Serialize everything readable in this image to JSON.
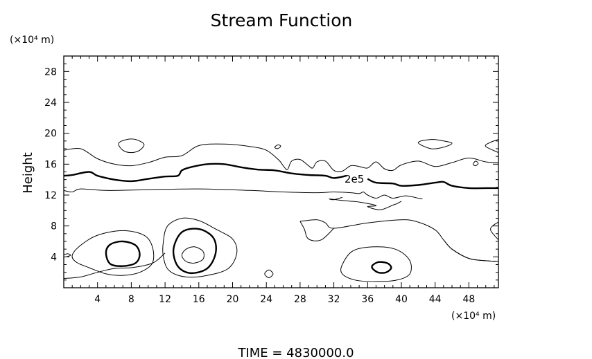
{
  "chart_data": {
    "type": "contour",
    "title": "Stream Function",
    "xlabel": "",
    "ylabel": "Height",
    "x_unit": "(×10⁴ m)",
    "y_unit": "(×10⁴ m)",
    "xlim": [
      0,
      51.5
    ],
    "ylim": [
      0,
      30
    ],
    "x_ticks": [
      4,
      8,
      12,
      16,
      20,
      24,
      28,
      32,
      36,
      40,
      44,
      48
    ],
    "y_ticks": [
      4,
      8,
      12,
      16,
      20,
      24,
      28
    ],
    "grid": false,
    "contour_label": "2e5",
    "footer": "TIME  =  4830000.0",
    "contours": [
      {
        "name": "upper-band-thin",
        "weight": "thin",
        "points": [
          [
            0,
            17.8
          ],
          [
            2,
            18
          ],
          [
            4,
            16.7
          ],
          [
            6,
            16
          ],
          [
            8,
            15.8
          ],
          [
            10,
            16.2
          ],
          [
            12,
            16.9
          ],
          [
            14,
            17.1
          ],
          [
            16,
            18.4
          ],
          [
            19,
            18.6
          ],
          [
            22,
            18.3
          ],
          [
            24,
            17.8
          ],
          [
            25.5,
            16.5
          ],
          [
            26,
            15.8
          ],
          [
            26.5,
            15.3
          ],
          [
            27,
            16.4
          ],
          [
            28,
            16.6
          ],
          [
            29,
            15.8
          ],
          [
            29.5,
            15.5
          ],
          [
            30,
            16.3
          ],
          [
            31,
            16.4
          ],
          [
            32,
            15.2
          ],
          [
            33,
            15.1
          ],
          [
            34,
            15.8
          ],
          [
            35,
            15.7
          ],
          [
            36,
            15.5
          ],
          [
            37,
            16.3
          ],
          [
            38,
            15.4
          ],
          [
            39,
            15.2
          ],
          [
            40,
            15.9
          ],
          [
            42,
            16.4
          ],
          [
            44,
            15.7
          ],
          [
            46,
            16.2
          ],
          [
            48,
            16.8
          ],
          [
            50,
            16.3
          ],
          [
            51.5,
            16.2
          ]
        ]
      },
      {
        "name": "thick-2e5",
        "weight": "thick",
        "points": [
          [
            0,
            14.5
          ],
          [
            1,
            14.6
          ],
          [
            3,
            15
          ],
          [
            4,
            14.5
          ],
          [
            6,
            14
          ],
          [
            8,
            13.8
          ],
          [
            10,
            14.1
          ],
          [
            12,
            14.4
          ],
          [
            13.5,
            14.5
          ],
          [
            14,
            15.2
          ],
          [
            15,
            15.6
          ],
          [
            17,
            16
          ],
          [
            19,
            16
          ],
          [
            21,
            15.6
          ],
          [
            23,
            15.3
          ],
          [
            25,
            15.2
          ],
          [
            27,
            14.8
          ],
          [
            29,
            14.6
          ],
          [
            31,
            14.5
          ],
          [
            32,
            14.2
          ],
          [
            33.5,
            14.5
          ]
        ]
      },
      {
        "name": "thick-2e5-right",
        "weight": "thick",
        "points": [
          [
            36,
            14.1
          ],
          [
            37,
            13.6
          ],
          [
            39,
            13.5
          ],
          [
            40,
            13.2
          ],
          [
            42,
            13.3
          ],
          [
            44,
            13.6
          ],
          [
            45,
            13.7
          ],
          [
            46,
            13.2
          ],
          [
            48,
            12.9
          ],
          [
            50,
            12.9
          ],
          [
            51.5,
            12.9
          ]
        ]
      },
      {
        "name": "lower-band-thin",
        "weight": "thin",
        "points": [
          [
            0,
            12.6
          ],
          [
            1,
            12.4
          ],
          [
            2,
            12.8
          ],
          [
            5,
            12.6
          ],
          [
            10,
            12.7
          ],
          [
            16,
            12.8
          ],
          [
            22,
            12.6
          ],
          [
            26,
            12.4
          ],
          [
            30,
            12.3
          ],
          [
            32,
            12.4
          ],
          [
            34,
            12.3
          ],
          [
            35,
            12.2
          ],
          [
            35.5,
            12.4
          ],
          [
            36,
            12
          ],
          [
            37,
            11.6
          ],
          [
            38,
            12
          ],
          [
            39,
            11.6
          ],
          [
            40.5,
            11.9
          ],
          [
            42,
            11.6
          ],
          [
            42.5,
            11.5
          ]
        ]
      },
      {
        "name": "low-lobe-thin",
        "weight": "thin",
        "points": [
          [
            33,
            11.7
          ],
          [
            32,
            11.4
          ],
          [
            31.5,
            11.5
          ],
          [
            33,
            11.3
          ],
          [
            35,
            11.1
          ],
          [
            36.5,
            10.8
          ],
          [
            37,
            10.6
          ],
          [
            36,
            10.5
          ],
          [
            37.5,
            10.1
          ],
          [
            39,
            10.7
          ],
          [
            39.5,
            10.9
          ],
          [
            40,
            11.2
          ]
        ]
      },
      {
        "name": "dome-thin",
        "weight": "thin",
        "points": [
          [
            28,
            8.6
          ],
          [
            30,
            8.8
          ],
          [
            31,
            8.4
          ],
          [
            32,
            7.7
          ],
          [
            36,
            8.4
          ],
          [
            40,
            8.8
          ],
          [
            42,
            8.5
          ],
          [
            44,
            7.5
          ],
          [
            45,
            6.2
          ],
          [
            46,
            5
          ],
          [
            48,
            3.8
          ],
          [
            50,
            3.5
          ],
          [
            51.5,
            3.4
          ]
        ]
      },
      {
        "name": "dome-left",
        "weight": "thin",
        "points": [
          [
            28,
            8.6
          ],
          [
            28.5,
            7.6
          ],
          [
            29,
            6.3
          ],
          [
            30.5,
            6.2
          ],
          [
            32,
            7.7
          ]
        ]
      },
      {
        "name": "bottom-left-band",
        "weight": "thin",
        "points": [
          [
            0,
            1.2
          ],
          [
            2,
            1.4
          ],
          [
            4,
            2
          ],
          [
            6,
            2.5
          ],
          [
            8,
            2.6
          ],
          [
            10,
            3
          ],
          [
            11,
            3.5
          ],
          [
            12,
            4.5
          ]
        ]
      },
      {
        "name": "bottom-right-band",
        "weight": "thin",
        "points": [
          [
            45,
            6.2
          ],
          [
            46,
            5
          ],
          [
            48,
            3.8
          ],
          [
            50,
            3.5
          ],
          [
            51.5,
            3.4
          ]
        ]
      },
      {
        "name": "cell1-outer",
        "weight": "thin",
        "closed": true,
        "points": [
          [
            1,
            4.2
          ],
          [
            2,
            5.5
          ],
          [
            4,
            6.8
          ],
          [
            7,
            7.4
          ],
          [
            9.5,
            6.8
          ],
          [
            10.5,
            5.3
          ],
          [
            10.5,
            3.2
          ],
          [
            9,
            2
          ],
          [
            7,
            1.6
          ],
          [
            5,
            1.8
          ],
          [
            3,
            2.6
          ],
          [
            1.5,
            3.3
          ]
        ]
      },
      {
        "name": "cell1-inner",
        "weight": "thick",
        "closed": true,
        "points": [
          [
            5,
            4.5
          ],
          [
            5.5,
            5.6
          ],
          [
            7,
            6
          ],
          [
            8.5,
            5.5
          ],
          [
            9,
            4.3
          ],
          [
            8.5,
            3.2
          ],
          [
            7,
            2.8
          ],
          [
            5.5,
            3.1
          ]
        ]
      },
      {
        "name": "cell2-outer",
        "weight": "thin",
        "closed": true,
        "points": [
          [
            11.8,
            6
          ],
          [
            12.3,
            8
          ],
          [
            14,
            9
          ],
          [
            16,
            8.7
          ],
          [
            18,
            7.6
          ],
          [
            20,
            6.3
          ],
          [
            20.5,
            4.5
          ],
          [
            19.5,
            2.5
          ],
          [
            17,
            1.6
          ],
          [
            14.5,
            1.4
          ],
          [
            12.5,
            2.2
          ],
          [
            11.8,
            4
          ]
        ]
      },
      {
        "name": "cell2-mid",
        "weight": "thick",
        "closed": true,
        "points": [
          [
            13,
            5
          ],
          [
            14,
            7.2
          ],
          [
            16,
            7.6
          ],
          [
            17.7,
            6.5
          ],
          [
            18,
            4.5
          ],
          [
            17,
            2.5
          ],
          [
            15,
            1.9
          ],
          [
            13.5,
            2.8
          ]
        ]
      },
      {
        "name": "cell2-inner",
        "weight": "thin",
        "closed": true,
        "points": [
          [
            14,
            4.2
          ],
          [
            14.5,
            5
          ],
          [
            15.5,
            5.3
          ],
          [
            16.5,
            4.7
          ],
          [
            16.5,
            3.7
          ],
          [
            15.5,
            3.2
          ],
          [
            14.5,
            3.4
          ]
        ]
      },
      {
        "name": "cell3-outer",
        "weight": "thin",
        "closed": true,
        "points": [
          [
            33,
            3
          ],
          [
            34.3,
            4.8
          ],
          [
            37,
            5.3
          ],
          [
            39.5,
            4.9
          ],
          [
            41,
            3.5
          ],
          [
            41,
            1.8
          ],
          [
            39.5,
            1
          ],
          [
            37,
            0.8
          ],
          [
            34.5,
            1
          ],
          [
            33,
            1.8
          ]
        ]
      },
      {
        "name": "cell3-inner",
        "weight": "thick",
        "closed": true,
        "points": [
          [
            36.5,
            2.7
          ],
          [
            37.2,
            3.3
          ],
          [
            38.3,
            3.2
          ],
          [
            38.8,
            2.6
          ],
          [
            38.2,
            2
          ],
          [
            37.2,
            2
          ]
        ]
      },
      {
        "name": "islet-7",
        "weight": "thin",
        "closed": true,
        "points": [
          [
            6.5,
            18.7
          ],
          [
            7.5,
            19.2
          ],
          [
            8.5,
            19.2
          ],
          [
            9.5,
            18.6
          ],
          [
            9,
            17.8
          ],
          [
            8,
            17.5
          ],
          [
            7,
            17.8
          ]
        ]
      },
      {
        "name": "islet-25",
        "weight": "thin",
        "closed": true,
        "points": [
          [
            25,
            18.2
          ],
          [
            25.4,
            18.5
          ],
          [
            25.7,
            18.3
          ],
          [
            25.3,
            18
          ]
        ]
      },
      {
        "name": "islet-24",
        "weight": "thin",
        "closed": true,
        "points": [
          [
            23.8,
            1.8
          ],
          [
            24.3,
            2.3
          ],
          [
            24.8,
            1.8
          ],
          [
            24.3,
            1.3
          ]
        ]
      },
      {
        "name": "islet-44",
        "weight": "thin",
        "closed": true,
        "points": [
          [
            42,
            18.8
          ],
          [
            43.5,
            19.2
          ],
          [
            45,
            19
          ],
          [
            46,
            18.7
          ],
          [
            45,
            18.2
          ],
          [
            43.5,
            18
          ]
        ]
      },
      {
        "name": "islet-49",
        "weight": "thin",
        "closed": true,
        "points": [
          [
            48.5,
            16
          ],
          [
            48.8,
            16.4
          ],
          [
            49.1,
            16.1
          ],
          [
            48.8,
            15.8
          ]
        ]
      },
      {
        "name": "right-edge-top",
        "weight": "thin",
        "points": [
          [
            51.5,
            19.2
          ],
          [
            50.5,
            18.8
          ],
          [
            50,
            18.3
          ],
          [
            51.5,
            17.5
          ]
        ]
      },
      {
        "name": "right-edge-mid",
        "weight": "thin",
        "points": [
          [
            51.5,
            8.5
          ],
          [
            50.8,
            8
          ],
          [
            50.6,
            7.4
          ],
          [
            51.5,
            6.2
          ]
        ]
      },
      {
        "name": "tiny-left",
        "weight": "thin",
        "points": [
          [
            0,
            4.3
          ],
          [
            0.5,
            4.4
          ],
          [
            0.8,
            4.2
          ],
          [
            0.3,
            4
          ]
        ]
      }
    ]
  }
}
